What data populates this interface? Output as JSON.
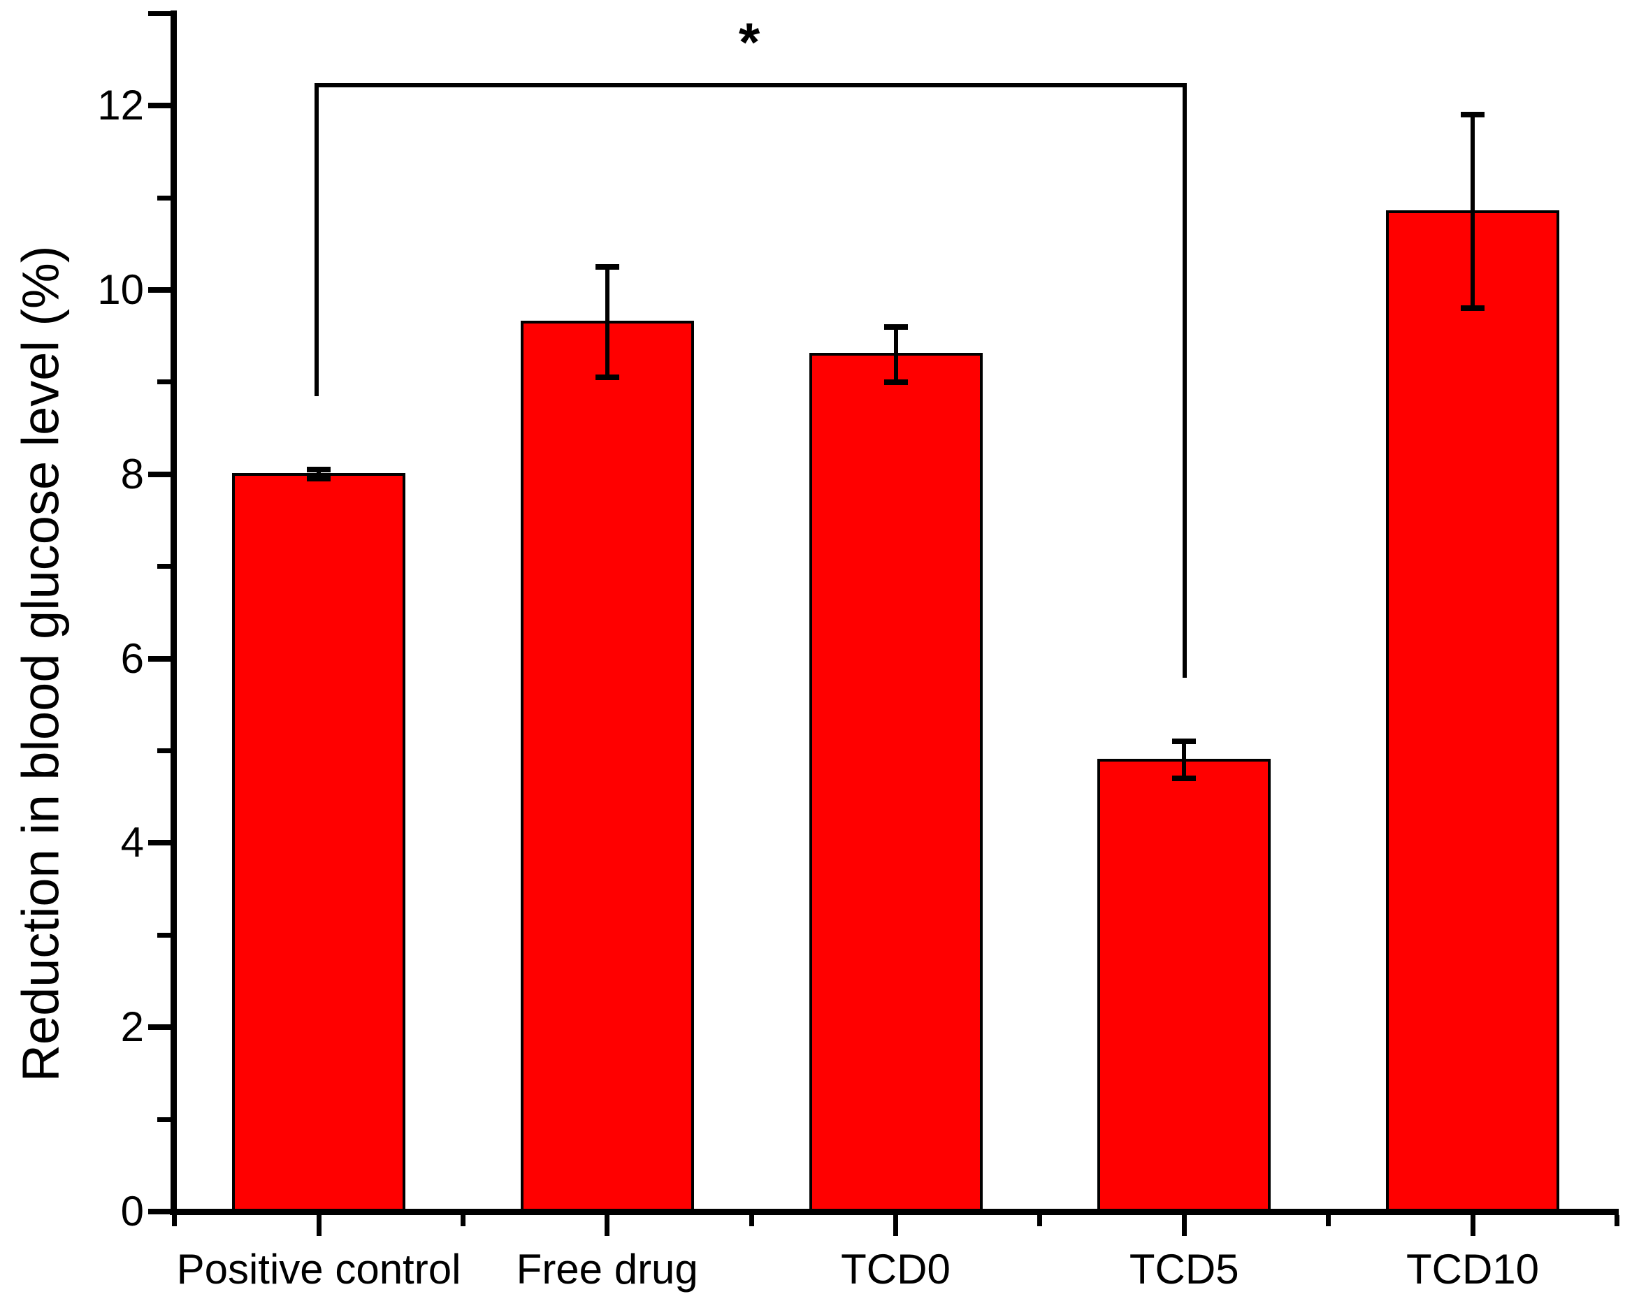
{
  "chart_data": {
    "type": "bar",
    "title": "",
    "xlabel": "",
    "ylabel": "Reduction in blood glucose level (%)",
    "categories": [
      "Positive control",
      "Free drug",
      "TCD0",
      "TCD5",
      "TCD10"
    ],
    "values": [
      8.0,
      9.65,
      9.3,
      4.9,
      10.85
    ],
    "errors": [
      0.05,
      0.6,
      0.3,
      0.2,
      1.05
    ],
    "error_style": "symmetric-caps",
    "ylim": [
      0,
      13
    ],
    "yticks_major": [
      0,
      2,
      4,
      6,
      8,
      10,
      12
    ],
    "yticks_minor": [
      1,
      3,
      5,
      7,
      9,
      11,
      13
    ],
    "grid": false,
    "legend": null,
    "bar_color": "#ff0000",
    "bar_edge_color": "#000000",
    "error_color": "#000000",
    "axis_color": "#000000",
    "background_color": "#ffffff",
    "significance": {
      "label": "*",
      "from_category": "Positive control",
      "to_category": "TCD5"
    }
  }
}
